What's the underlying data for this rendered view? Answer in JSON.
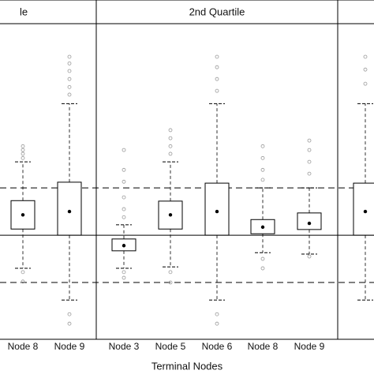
{
  "chart_data": {
    "type": "box",
    "x_label": "Terminal Nodes",
    "ylim": [
      -2.2,
      4.47
    ],
    "reference_lines": [
      {
        "value": 1,
        "style": "dashed"
      },
      {
        "value": 0,
        "style": "solid"
      },
      {
        "value": -1,
        "style": "dashed"
      }
    ],
    "box_color": "#000000",
    "outlier_color": "#999999",
    "panels": [
      {
        "title": "le",
        "categories": [
          "Node 8",
          "Node 9"
        ],
        "boxes": [
          {
            "q1": 0.13,
            "q3": 0.73,
            "mean": 0.43,
            "whisker_low": -0.7,
            "whisker_high": 1.55,
            "outliers": [
              1.88,
              1.8,
              1.72,
              1.63,
              -0.78,
              -0.98
            ]
          },
          {
            "q1": 0,
            "q3": 1.12,
            "mean": 0.5,
            "whisker_low": -1.37,
            "whisker_high": 2.78,
            "outliers": [
              3.77,
              3.63,
              3.47,
              3.3,
              3.13,
              2.97,
              -1.67,
              -1.87
            ]
          }
        ]
      },
      {
        "title": "2nd Quartile",
        "categories": [
          "Node 3",
          "Node 5",
          "Node 6",
          "Node 8",
          "Node 9"
        ],
        "boxes": [
          {
            "q1": -0.33,
            "q3": -0.08,
            "mean": -0.22,
            "whisker_low": -0.7,
            "whisker_high": 0.22,
            "outliers": [
              1.8,
              1.38,
              1.13,
              0.8,
              0.55,
              0.38,
              -0.78,
              -0.9
            ]
          },
          {
            "q1": 0.13,
            "q3": 0.72,
            "mean": 0.43,
            "whisker_low": -0.67,
            "whisker_high": 1.55,
            "outliers": [
              2.22,
              2.05,
              1.88,
              1.72,
              -0.78,
              -1.0
            ]
          },
          {
            "q1": 0,
            "q3": 1.1,
            "mean": 0.5,
            "whisker_low": -1.37,
            "whisker_high": 2.78,
            "outliers": [
              3.77,
              3.55,
              3.3,
              3.05,
              -1.67,
              -1.87
            ]
          },
          {
            "q1": 0.03,
            "q3": 0.33,
            "mean": 0.17,
            "whisker_low": -0.37,
            "whisker_high": 1.0,
            "outliers": [
              1.88,
              1.63,
              1.38,
              1.17,
              -0.5,
              -0.7
            ]
          },
          {
            "q1": 0.12,
            "q3": 0.47,
            "mean": 0.25,
            "whisker_low": -0.4,
            "whisker_high": 1.0,
            "outliers": [
              2.0,
              1.8,
              1.55,
              1.3,
              -0.45
            ]
          }
        ]
      },
      {
        "categories": [
          null
        ],
        "boxes": [
          {
            "q1": 0,
            "q3": 1.1,
            "mean": 0.5,
            "whisker_low": -1.37,
            "whisker_high": 2.78,
            "outliers": [
              3.77,
              3.5,
              3.2
            ]
          }
        ]
      }
    ]
  }
}
